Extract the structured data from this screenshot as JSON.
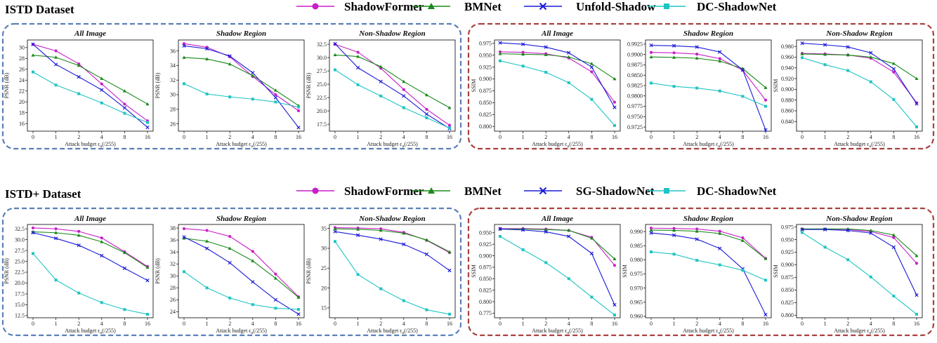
{
  "colors": {
    "ShadowFormer": "#c81fc8",
    "BMNet": "#1a8a1a",
    "Unfold-Shadow": "#1a1ad8",
    "SG-ShadowNet": "#1a1ad8",
    "DC-ShadowNet": "#20c4c4",
    "left_box": "#5b7fb8",
    "right_box": "#a84040"
  },
  "markers": {
    "ShadowFormer": "circle",
    "BMNet": "triangle",
    "Unfold-Shadow": "x",
    "SG-ShadowNet": "x",
    "DC-ShadowNet": "square"
  },
  "chart_data": [
    {
      "dataset": "ISTD Dataset",
      "legend": [
        "ShadowFormer",
        "BMNet",
        "Unfold-Shadow",
        "DC-ShadowNet"
      ],
      "xlabel": "Attack budget ϵ",
      "xlabel_sub": "a",
      "xlabel_unit": "(/255)",
      "categories": [
        "0",
        "1",
        "2",
        "4",
        "8",
        "16"
      ],
      "panels": [
        {
          "title": "All Image",
          "type": "line",
          "ylabel": "PSNR (dB)",
          "ylim": [
            14.6,
            31.4
          ],
          "yticks": [
            16,
            18,
            20,
            22,
            24,
            26,
            28,
            30
          ],
          "series": [
            {
              "name": "ShadowFormer",
              "values": [
                30.6,
                29.4,
                27.0,
                23.3,
                19.6,
                16.5
              ]
            },
            {
              "name": "BMNet",
              "values": [
                28.6,
                28.2,
                26.7,
                24.3,
                22.0,
                19.6
              ]
            },
            {
              "name": "Unfold-Shadow",
              "values": [
                30.6,
                26.9,
                24.6,
                22.2,
                18.9,
                15.3
              ]
            },
            {
              "name": "DC-ShadowNet",
              "values": [
                25.5,
                23.1,
                21.5,
                19.8,
                17.9,
                16.2
              ]
            }
          ]
        },
        {
          "title": "Shadow Region",
          "type": "line",
          "ylabel": "PSNR (dB)",
          "ylim": [
            25.0,
            37.5
          ],
          "yticks": [
            26,
            28,
            30,
            32,
            34,
            36
          ],
          "series": [
            {
              "name": "ShadowFormer",
              "values": [
                37.0,
                36.5,
                35.2,
                32.5,
                30.0,
                27.8
              ]
            },
            {
              "name": "BMNet",
              "values": [
                35.1,
                34.9,
                34.2,
                32.6,
                30.6,
                28.5
              ]
            },
            {
              "name": "Unfold-Shadow",
              "values": [
                36.7,
                36.3,
                35.3,
                33.0,
                29.6,
                25.5
              ]
            },
            {
              "name": "DC-ShadowNet",
              "values": [
                31.5,
                30.1,
                29.7,
                29.4,
                29.0,
                28.3
              ]
            }
          ]
        },
        {
          "title": "Non-Shadow Region",
          "type": "line",
          "ylabel": "PSNR (dB)",
          "ylim": [
            16.2,
            33.3
          ],
          "yticks": [
            17.5,
            20.0,
            22.5,
            25.0,
            27.5,
            30.0,
            32.5
          ],
          "series": [
            {
              "name": "ShadowFormer",
              "values": [
                32.5,
                31.0,
                28.0,
                24.0,
                20.3,
                17.3
              ]
            },
            {
              "name": "BMNet",
              "values": [
                30.5,
                30.2,
                28.3,
                25.5,
                23.0,
                20.6
              ]
            },
            {
              "name": "Unfold-Shadow",
              "values": [
                32.6,
                28.1,
                25.5,
                22.8,
                19.4,
                16.7
              ]
            },
            {
              "name": "DC-ShadowNet",
              "values": [
                27.7,
                24.9,
                22.8,
                20.6,
                18.7,
                16.8
              ]
            }
          ]
        },
        {
          "title": "All Image",
          "type": "line",
          "ylabel": "SSIM",
          "ylim": [
            0.79,
            0.982
          ],
          "yticks": [
            0.8,
            0.825,
            0.85,
            0.875,
            0.9,
            0.925,
            0.95,
            0.975
          ],
          "series": [
            {
              "name": "ShadowFormer",
              "values": [
                0.957,
                0.956,
                0.953,
                0.944,
                0.915,
                0.851
              ]
            },
            {
              "name": "BMNet",
              "values": [
                0.953,
                0.952,
                0.951,
                0.946,
                0.932,
                0.9
              ]
            },
            {
              "name": "Unfold-Shadow",
              "values": [
                0.976,
                0.973,
                0.967,
                0.955,
                0.925,
                0.84
              ]
            },
            {
              "name": "DC-ShadowNet",
              "values": [
                0.938,
                0.927,
                0.914,
                0.892,
                0.857,
                0.802
              ]
            }
          ]
        },
        {
          "title": "Shadow Region",
          "type": "line",
          "ylabel": "",
          "ylim": [
            0.9715,
            0.9935
          ],
          "yticks": [
            0.9725,
            0.975,
            0.9775,
            0.98,
            0.9825,
            0.985,
            0.9875,
            0.99,
            0.9925
          ],
          "series": [
            {
              "name": "ShadowFormer",
              "values": [
                0.9905,
                0.9904,
                0.9901,
                0.989,
                0.9862,
                0.979
              ]
            },
            {
              "name": "BMNet",
              "values": [
                0.9894,
                0.9893,
                0.9891,
                0.9884,
                0.9866,
                0.982
              ]
            },
            {
              "name": "Unfold-Shadow",
              "values": [
                0.9922,
                0.9921,
                0.9918,
                0.9906,
                0.9863,
                0.9718
              ]
            },
            {
              "name": "DC-ShadowNet",
              "values": [
                0.9831,
                0.9823,
                0.9819,
                0.9812,
                0.9799,
                0.9775
              ]
            }
          ]
        },
        {
          "title": "Non-Shadow Region",
          "type": "line",
          "ylabel": "SSIM",
          "ylim": [
            0.822,
            0.992
          ],
          "yticks": [
            0.84,
            0.86,
            0.88,
            0.9,
            0.92,
            0.94,
            0.96,
            0.98
          ],
          "series": [
            {
              "name": "ShadowFormer",
              "values": [
                0.967,
                0.966,
                0.964,
                0.958,
                0.932,
                0.875
              ]
            },
            {
              "name": "BMNet",
              "values": [
                0.966,
                0.965,
                0.964,
                0.96,
                0.948,
                0.92
              ]
            },
            {
              "name": "Unfold-Shadow",
              "values": [
                0.986,
                0.983,
                0.979,
                0.968,
                0.938,
                0.873
              ]
            },
            {
              "name": "DC-ShadowNet",
              "values": [
                0.959,
                0.946,
                0.935,
                0.914,
                0.881,
                0.83
              ]
            }
          ]
        }
      ]
    },
    {
      "dataset": "ISTD+ Dataset",
      "legend": [
        "ShadowFormer",
        "BMNet",
        "SG-ShadowNet",
        "DC-ShadowNet"
      ],
      "xlabel": "Attack budget ϵ",
      "xlabel_sub": "a",
      "xlabel_unit": "(/255)",
      "categories": [
        "0",
        "1",
        "2",
        "4",
        "8",
        "16"
      ],
      "panels": [
        {
          "title": "All Image",
          "type": "line",
          "ylabel": "PSNR (dB)",
          "ylim": [
            12.0,
            33.5
          ],
          "yticks": [
            12.5,
            15.0,
            17.5,
            20.0,
            22.5,
            25.0,
            27.5,
            30.0,
            32.5
          ],
          "series": [
            {
              "name": "ShadowFormer",
              "values": [
                32.7,
                32.5,
                31.9,
                30.4,
                27.2,
                23.8
              ]
            },
            {
              "name": "BMNet",
              "values": [
                31.8,
                31.6,
                31.0,
                29.5,
                27.0,
                23.6
              ]
            },
            {
              "name": "SG-ShadowNet",
              "values": [
                31.6,
                30.3,
                28.7,
                26.3,
                23.4,
                20.6
              ]
            },
            {
              "name": "DC-ShadowNet",
              "values": [
                26.8,
                20.7,
                17.7,
                15.5,
                13.9,
                12.8
              ]
            }
          ]
        },
        {
          "title": "Shadow Region",
          "type": "line",
          "ylabel": "PSNR (dB)",
          "ylim": [
            23.0,
            38.6
          ],
          "yticks": [
            24,
            26,
            28,
            30,
            32,
            34,
            36,
            38
          ],
          "series": [
            {
              "name": "ShadowFormer",
              "values": [
                37.9,
                37.6,
                36.6,
                34.1,
                30.3,
                26.5
              ]
            },
            {
              "name": "BMNet",
              "values": [
                36.3,
                35.8,
                34.6,
                32.5,
                29.6,
                26.4
              ]
            },
            {
              "name": "SG-ShadowNet",
              "values": [
                36.5,
                34.6,
                32.2,
                29.0,
                26.0,
                23.6
              ]
            },
            {
              "name": "DC-ShadowNet",
              "values": [
                30.7,
                28.0,
                26.3,
                25.2,
                24.6,
                24.4
              ]
            }
          ]
        },
        {
          "title": "Non-Shadow Region",
          "type": "line",
          "ylabel": "PSNR (dB)",
          "ylim": [
            12.5,
            36.0
          ],
          "yticks": [
            15,
            20,
            25,
            30,
            35
          ],
          "series": [
            {
              "name": "ShadowFormer",
              "values": [
                35.2,
                35.1,
                34.9,
                34.0,
                32.0,
                28.9
              ]
            },
            {
              "name": "BMNet",
              "values": [
                34.9,
                34.8,
                34.5,
                33.8,
                32.1,
                29.1
              ]
            },
            {
              "name": "SG-ShadowNet",
              "values": [
                34.2,
                33.3,
                32.3,
                31.0,
                28.5,
                24.4
              ]
            },
            {
              "name": "DC-ShadowNet",
              "values": [
                31.7,
                23.4,
                19.8,
                16.8,
                14.5,
                13.4
              ]
            }
          ]
        },
        {
          "title": "All Image",
          "type": "line",
          "ylabel": "SSIM",
          "ylim": [
            0.765,
            0.968
          ],
          "yticks": [
            0.775,
            0.8,
            0.825,
            0.85,
            0.875,
            0.9,
            0.925,
            0.95
          ],
          "series": [
            {
              "name": "ShadowFormer",
              "values": [
                0.959,
                0.959,
                0.958,
                0.955,
                0.94,
                0.879
              ]
            },
            {
              "name": "BMNet",
              "values": [
                0.958,
                0.958,
                0.957,
                0.955,
                0.938,
                0.893
              ]
            },
            {
              "name": "SG-ShadowNet",
              "values": [
                0.958,
                0.956,
                0.952,
                0.942,
                0.905,
                0.793
              ]
            },
            {
              "name": "DC-ShadowNet",
              "values": [
                0.942,
                0.913,
                0.885,
                0.85,
                0.81,
                0.771
              ]
            }
          ]
        },
        {
          "title": "Shadow Region",
          "type": "line",
          "ylabel": "SSIM",
          "ylim": [
            0.9595,
            0.9925
          ],
          "yticks": [
            0.96,
            0.965,
            0.97,
            0.975,
            0.98,
            0.985,
            0.99
          ],
          "series": [
            {
              "name": "ShadowFormer",
              "values": [
                0.9912,
                0.9911,
                0.9909,
                0.9901,
                0.9878,
                0.9805
              ]
            },
            {
              "name": "BMNet",
              "values": [
                0.9905,
                0.9904,
                0.9901,
                0.9893,
                0.9868,
                0.9804
              ]
            },
            {
              "name": "SG-ShadowNet",
              "values": [
                0.9895,
                0.9887,
                0.9873,
                0.984,
                0.9768,
                0.9606
              ]
            },
            {
              "name": "DC-ShadowNet",
              "values": [
                0.9828,
                0.982,
                0.9798,
                0.9782,
                0.9763,
                0.9728
              ]
            }
          ]
        },
        {
          "title": "Non-Shadow Region",
          "type": "line",
          "ylabel": "SSIM",
          "ylim": [
            0.795,
            0.98
          ],
          "yticks": [
            0.8,
            0.825,
            0.85,
            0.875,
            0.9,
            0.925,
            0.95,
            0.975
          ],
          "series": [
            {
              "name": "ShadowFormer",
              "values": [
                0.971,
                0.971,
                0.97,
                0.966,
                0.954,
                0.903
              ]
            },
            {
              "name": "BMNet",
              "values": [
                0.971,
                0.971,
                0.971,
                0.968,
                0.959,
                0.918
              ]
            },
            {
              "name": "SG-ShadowNet",
              "values": [
                0.97,
                0.97,
                0.968,
                0.963,
                0.935,
                0.84
              ]
            },
            {
              "name": "DC-ShadowNet",
              "values": [
                0.964,
                0.935,
                0.91,
                0.876,
                0.838,
                0.802
              ]
            }
          ]
        }
      ]
    }
  ]
}
